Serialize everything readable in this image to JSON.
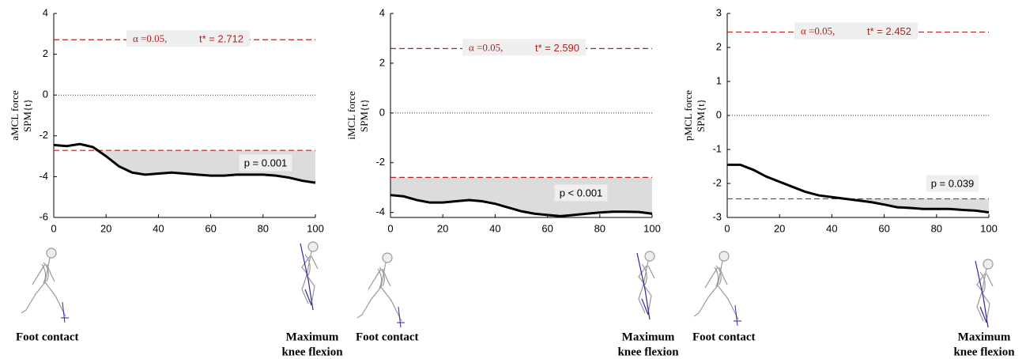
{
  "chart_data": [
    {
      "type": "line",
      "ylabel": [
        "aMCL force",
        "SPM{t}"
      ],
      "x": [
        0,
        5,
        10,
        15,
        20,
        25,
        30,
        35,
        40,
        45,
        50,
        55,
        60,
        65,
        70,
        75,
        80,
        85,
        90,
        95,
        100
      ],
      "series": [
        {
          "color": "#000000",
          "values": [
            -2.45,
            -2.5,
            -2.4,
            -2.55,
            -3.0,
            -3.5,
            -3.8,
            -3.9,
            -3.85,
            -3.8,
            -3.85,
            -3.9,
            -3.95,
            -3.95,
            -3.9,
            -3.9,
            -3.9,
            -3.95,
            -4.05,
            -4.2,
            -4.3
          ]
        }
      ],
      "xlim": [
        0,
        100
      ],
      "xticks": [
        0,
        20,
        40,
        60,
        80,
        100
      ],
      "ylim": [
        -6,
        4
      ],
      "yticks": [
        -6,
        -4,
        -2,
        0,
        2,
        4
      ],
      "threshold": 2.712,
      "threshold_color": "#b22222",
      "alpha_label": "α =0.05,",
      "threshold_label": "t* = 2.712",
      "p_label": "p = 0.001",
      "start_label": "Foot contact",
      "end_label": [
        "Maximum",
        "knee flexion"
      ]
    },
    {
      "type": "line",
      "ylabel": [
        "iMCL force",
        "SPM{t}"
      ],
      "x": [
        0,
        5,
        10,
        15,
        20,
        25,
        30,
        35,
        40,
        45,
        50,
        55,
        60,
        65,
        70,
        75,
        80,
        85,
        90,
        95,
        100
      ],
      "series": [
        {
          "color": "#000000",
          "values": [
            -3.3,
            -3.35,
            -3.5,
            -3.6,
            -3.6,
            -3.55,
            -3.5,
            -3.55,
            -3.65,
            -3.8,
            -3.95,
            -4.05,
            -4.1,
            -4.15,
            -4.1,
            -4.05,
            -4.0,
            -3.97,
            -3.97,
            -3.98,
            -4.05
          ]
        }
      ],
      "xlim": [
        0,
        100
      ],
      "xticks": [
        0,
        20,
        40,
        60,
        80,
        100
      ],
      "ylim": [
        -4.2,
        4
      ],
      "yticks": [
        -4,
        -2,
        0,
        2,
        4
      ],
      "threshold": 2.59,
      "threshold_color": "#b22222",
      "alpha_label": "α =0.05,",
      "threshold_label": "t* = 2.590",
      "p_label": "p < 0.001",
      "start_label": "Foot contact",
      "end_label": [
        "Maximum",
        "knee flexion"
      ]
    },
    {
      "type": "line",
      "ylabel": [
        "pMCL force",
        "SPM{t}"
      ],
      "x": [
        0,
        5,
        10,
        15,
        20,
        25,
        30,
        35,
        40,
        45,
        50,
        55,
        60,
        65,
        70,
        75,
        80,
        85,
        90,
        95,
        100
      ],
      "series": [
        {
          "color": "#000000",
          "values": [
            -1.45,
            -1.45,
            -1.6,
            -1.8,
            -1.95,
            -2.1,
            -2.25,
            -2.35,
            -2.4,
            -2.45,
            -2.5,
            -2.55,
            -2.62,
            -2.7,
            -2.72,
            -2.75,
            -2.75,
            -2.75,
            -2.78,
            -2.8,
            -2.85
          ]
        }
      ],
      "xlim": [
        0,
        100
      ],
      "xticks": [
        0,
        20,
        40,
        60,
        80,
        100
      ],
      "ylim": [
        -3,
        3
      ],
      "yticks": [
        -3,
        -2,
        -1,
        0,
        1,
        2,
        3
      ],
      "threshold": 2.452,
      "threshold_color": "#b22222",
      "alpha_label": "α =0.05,",
      "threshold_label": "t* = 2.452",
      "p_label": "p = 0.039",
      "start_label": "Foot contact",
      "end_label": [
        "Maximum",
        "knee flexion"
      ]
    }
  ]
}
